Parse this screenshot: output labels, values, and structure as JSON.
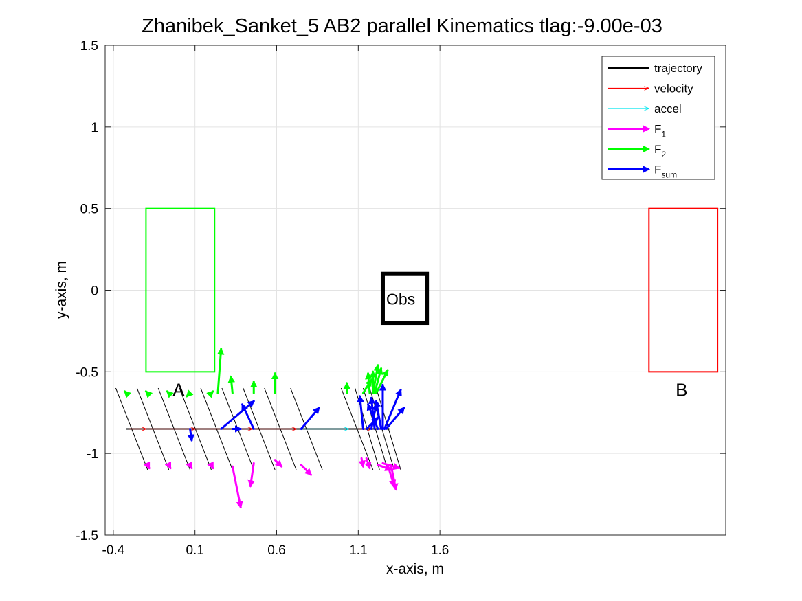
{
  "chart_data": {
    "type": "line",
    "title": "Zhanibek_Sanket_5    AB2    parallel    Kinematics tlag:-9.00e-03",
    "xlabel": "x-axis, m",
    "ylabel": "y-axis, m",
    "xlim": [
      -0.45,
      3.35
    ],
    "ylim": [
      -1.5,
      1.5
    ],
    "xticks": [
      -0.4,
      0.1,
      0.6,
      1.1,
      1.6
    ],
    "xtick_labels": [
      "-0.4",
      "0.1",
      "0.6",
      "1.1",
      "1.6"
    ],
    "yticks": [
      -1.5,
      -1,
      -0.5,
      0,
      0.5,
      1,
      1.5
    ],
    "ytick_labels": [
      "-1.5",
      "-1",
      "-0.5",
      "0",
      "0.5",
      "1",
      "1.5"
    ],
    "grid": true,
    "legend_position": "top-right",
    "legend": [
      {
        "label": "trajectory",
        "sub": "",
        "color": "#000000",
        "style": "line"
      },
      {
        "label": "velocity",
        "sub": "",
        "color": "#ff0000",
        "style": "thin-arrow"
      },
      {
        "label": "accel",
        "sub": "",
        "color": "#00e5ee",
        "style": "thin-arrow"
      },
      {
        "label": "F",
        "sub": "1",
        "color": "#ff00ff",
        "style": "thick-arrow"
      },
      {
        "label": "F",
        "sub": "2",
        "color": "#00ff00",
        "style": "thick-arrow"
      },
      {
        "label": "F",
        "sub": "sum",
        "color": "#0000ff",
        "style": "thick-arrow"
      }
    ],
    "regions": [
      {
        "name": "A",
        "color": "#00ff00",
        "x": [
          -0.2,
          0.22
        ],
        "y": [
          -0.5,
          0.5
        ]
      },
      {
        "name": "Obs",
        "color": "#000000",
        "x": [
          1.25,
          1.52
        ],
        "y": [
          -0.2,
          0.1
        ]
      },
      {
        "name": "B",
        "color": "#ff0000",
        "x": [
          2.88,
          3.3
        ],
        "y": [
          -0.5,
          0.5
        ]
      }
    ],
    "region_labels": [
      {
        "text": "A",
        "x": 0.0,
        "y": -0.61
      },
      {
        "text": "Obs",
        "x": 1.36,
        "y": -0.05
      },
      {
        "text": "B",
        "x": 3.08,
        "y": -0.61
      }
    ],
    "trajectory": {
      "x": [
        -0.32,
        1.29
      ],
      "y": [
        -0.85,
        -0.85
      ]
    },
    "bodies": [
      {
        "x": -0.32,
        "len": 0.25,
        "tilt": 0.13
      },
      {
        "x": -0.19,
        "len": 0.25,
        "tilt": 0.13
      },
      {
        "x": -0.06,
        "len": 0.25,
        "tilt": 0.13
      },
      {
        "x": 0.07,
        "len": 0.25,
        "tilt": 0.13
      },
      {
        "x": 0.2,
        "len": 0.25,
        "tilt": 0.13
      },
      {
        "x": 0.33,
        "len": 0.25,
        "tilt": 0.13
      },
      {
        "x": 0.46,
        "len": 0.25,
        "tilt": 0.13
      },
      {
        "x": 0.59,
        "len": 0.25,
        "tilt": 0.13
      },
      {
        "x": 0.75,
        "len": 0.25,
        "tilt": 0.13
      },
      {
        "x": 1.06,
        "len": 0.25,
        "tilt": 0.13
      },
      {
        "x": 1.13,
        "len": 0.25,
        "tilt": 0.1
      },
      {
        "x": 1.18,
        "len": 0.25,
        "tilt": 0.1
      },
      {
        "x": 1.22,
        "len": 0.25,
        "tilt": 0.1
      },
      {
        "x": 1.26,
        "len": 0.25,
        "tilt": 0.1
      }
    ],
    "velocity_arrows": [
      {
        "x0": -0.3,
        "y0": -0.85,
        "x1": -0.2,
        "y1": -0.85
      },
      {
        "x0": -0.2,
        "y0": -0.85,
        "x1": 0.1,
        "y1": -0.85
      },
      {
        "x0": 0.1,
        "y0": -0.85,
        "x1": 0.45,
        "y1": -0.85
      },
      {
        "x0": 0.45,
        "y0": -0.85,
        "x1": 0.72,
        "y1": -0.85
      },
      {
        "x0": 1.1,
        "y0": -0.85,
        "x1": 1.18,
        "y1": -0.85
      }
    ],
    "accel_arrows": [
      {
        "x0": 0.75,
        "y0": -0.85,
        "x1": 1.04,
        "y1": -0.85
      }
    ],
    "f1_arrows": [
      {
        "x0": -0.19,
        "y0": -1.07,
        "x1": -0.18,
        "y1": -1.09
      },
      {
        "x0": -0.06,
        "y0": -1.07,
        "x1": -0.05,
        "y1": -1.09
      },
      {
        "x0": 0.07,
        "y0": -1.07,
        "x1": 0.08,
        "y1": -1.09
      },
      {
        "x0": 0.2,
        "y0": -1.07,
        "x1": 0.21,
        "y1": -1.09
      },
      {
        "x0": 0.33,
        "y0": -1.08,
        "x1": 0.38,
        "y1": -1.33
      },
      {
        "x0": 0.46,
        "y0": -1.06,
        "x1": 0.44,
        "y1": -1.2
      },
      {
        "x0": 0.59,
        "y0": -1.04,
        "x1": 0.63,
        "y1": -1.08
      },
      {
        "x0": 0.75,
        "y0": -1.07,
        "x1": 0.81,
        "y1": -1.13
      },
      {
        "x0": 1.12,
        "y0": -1.03,
        "x1": 1.13,
        "y1": -1.08
      },
      {
        "x0": 1.15,
        "y0": -1.03,
        "x1": 1.17,
        "y1": -1.09
      },
      {
        "x0": 1.22,
        "y0": -1.07,
        "x1": 1.3,
        "y1": -1.1
      },
      {
        "x0": 1.28,
        "y0": -1.07,
        "x1": 1.32,
        "y1": -1.2
      },
      {
        "x0": 1.3,
        "y0": -1.07,
        "x1": 1.33,
        "y1": -1.22
      },
      {
        "x0": 1.25,
        "y0": -1.06,
        "x1": 1.35,
        "y1": -1.09
      }
    ],
    "f2_arrows": [
      {
        "x0": -0.32,
        "y0": -0.63,
        "x1": -0.33,
        "y1": -0.62
      },
      {
        "x0": -0.19,
        "y0": -0.63,
        "x1": -0.2,
        "y1": -0.62
      },
      {
        "x0": -0.06,
        "y0": -0.63,
        "x1": -0.07,
        "y1": -0.62
      },
      {
        "x0": 0.07,
        "y0": -0.63,
        "x1": 0.05,
        "y1": -0.65
      },
      {
        "x0": 0.2,
        "y0": -0.63,
        "x1": 0.21,
        "y1": -0.62
      },
      {
        "x0": 0.24,
        "y0": -0.63,
        "x1": 0.26,
        "y1": -0.36
      },
      {
        "x0": 0.33,
        "y0": -0.63,
        "x1": 0.32,
        "y1": -0.53
      },
      {
        "x0": 0.46,
        "y0": -0.63,
        "x1": 0.46,
        "y1": -0.56
      },
      {
        "x0": 0.59,
        "y0": -0.63,
        "x1": 0.59,
        "y1": -0.51
      },
      {
        "x0": 1.03,
        "y0": -0.63,
        "x1": 1.03,
        "y1": -0.57
      },
      {
        "x0": 1.13,
        "y0": -0.63,
        "x1": 1.18,
        "y1": -0.55
      },
      {
        "x0": 1.17,
        "y0": -0.63,
        "x1": 1.16,
        "y1": -0.51
      },
      {
        "x0": 1.19,
        "y0": -0.63,
        "x1": 1.22,
        "y1": -0.46
      },
      {
        "x0": 1.2,
        "y0": -0.63,
        "x1": 1.24,
        "y1": -0.48
      },
      {
        "x0": 1.21,
        "y0": -0.63,
        "x1": 1.28,
        "y1": -0.49
      },
      {
        "x0": 1.19,
        "y0": -0.63,
        "x1": 1.19,
        "y1": -0.5
      }
    ],
    "fsum_arrows": [
      {
        "x0": 0.07,
        "y0": -0.85,
        "x1": 0.08,
        "y1": -0.92
      },
      {
        "x0": 0.26,
        "y0": -0.85,
        "x1": 0.46,
        "y1": -0.68
      },
      {
        "x0": 0.46,
        "y0": -0.85,
        "x1": 0.39,
        "y1": -0.7
      },
      {
        "x0": 0.33,
        "y0": -0.85,
        "x1": 0.38,
        "y1": -0.85
      },
      {
        "x0": 0.75,
        "y0": -0.85,
        "x1": 0.86,
        "y1": -0.72
      },
      {
        "x0": 1.13,
        "y0": -0.85,
        "x1": 1.11,
        "y1": -0.65
      },
      {
        "x0": 1.22,
        "y0": -0.85,
        "x1": 1.16,
        "y1": -0.7
      },
      {
        "x0": 1.25,
        "y0": -0.85,
        "x1": 1.25,
        "y1": -0.58
      },
      {
        "x0": 1.26,
        "y0": -0.85,
        "x1": 1.36,
        "y1": -0.61
      },
      {
        "x0": 1.27,
        "y0": -0.85,
        "x1": 1.38,
        "y1": -0.72
      },
      {
        "x0": 1.2,
        "y0": -0.85,
        "x1": 1.18,
        "y1": -0.66
      },
      {
        "x0": 1.24,
        "y0": -0.85,
        "x1": 1.21,
        "y1": -0.68
      },
      {
        "x0": 1.15,
        "y0": -0.85,
        "x1": 1.22,
        "y1": -0.78
      },
      {
        "x0": 1.18,
        "y0": -0.85,
        "x1": 1.21,
        "y1": -0.7
      }
    ]
  }
}
